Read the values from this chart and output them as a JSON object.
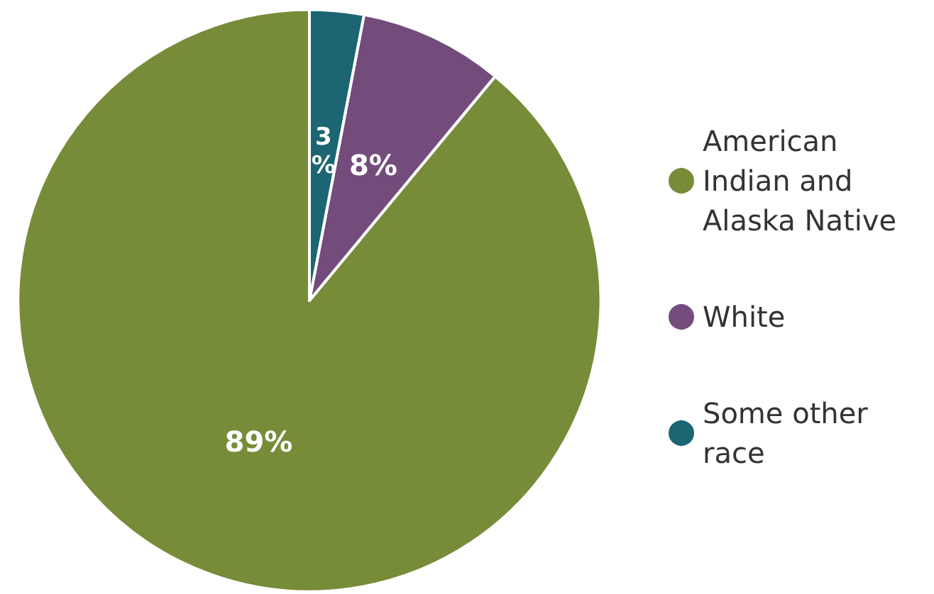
{
  "chart_data": {
    "type": "pie",
    "categories": [
      "American Indian and Alaska Native",
      "White",
      "Some other race"
    ],
    "values": [
      89,
      8,
      3
    ],
    "colors": [
      "#778c38",
      "#734c7c",
      "#1b6672"
    ],
    "value_labels": [
      "89%",
      "8%",
      "3%"
    ],
    "legend": "right"
  }
}
